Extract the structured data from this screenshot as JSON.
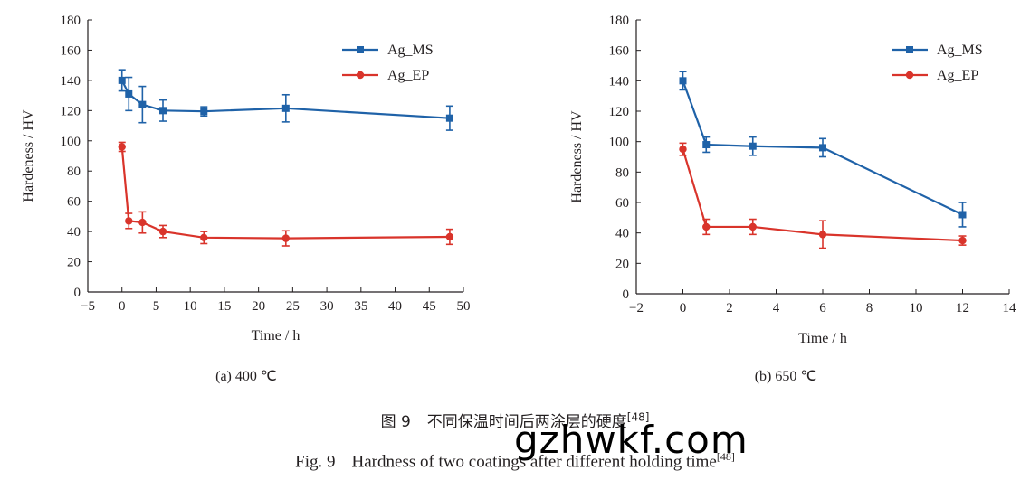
{
  "chart_data": [
    {
      "type": "line",
      "subtitle": "(a) 400 ℃",
      "xlabel": "Time / h",
      "ylabel": "Hardeness / HV",
      "xlim": [
        -5,
        50
      ],
      "ylim": [
        0,
        180
      ],
      "xticks": [
        -5,
        0,
        5,
        10,
        15,
        20,
        25,
        30,
        35,
        40,
        45,
        50
      ],
      "yticks": [
        0,
        20,
        40,
        60,
        80,
        100,
        120,
        140,
        160,
        180
      ],
      "legend": "top-right",
      "series": [
        {
          "name": "Ag_MS",
          "color": "#1f62a8",
          "marker": "square",
          "x": [
            0,
            1,
            3,
            6,
            12,
            24,
            48
          ],
          "y": [
            140,
            131,
            124,
            120,
            119.5,
            121.5,
            115
          ],
          "err": [
            7,
            11,
            12,
            7,
            3,
            9,
            8
          ]
        },
        {
          "name": "Ag_EP",
          "color": "#d9342b",
          "marker": "circle",
          "x": [
            0,
            1,
            3,
            6,
            12,
            24,
            48
          ],
          "y": [
            96,
            47,
            46,
            40,
            36,
            35.5,
            36.5
          ],
          "err": [
            3,
            5,
            7,
            4,
            4,
            5,
            5
          ]
        }
      ]
    },
    {
      "type": "line",
      "subtitle": "(b) 650 ℃",
      "xlabel": "Time / h",
      "ylabel": "Hardeness / HV",
      "xlim": [
        -2,
        14
      ],
      "ylim": [
        0,
        180
      ],
      "xticks": [
        -2,
        0,
        2,
        4,
        6,
        8,
        10,
        12,
        14
      ],
      "yticks": [
        0,
        20,
        40,
        60,
        80,
        100,
        120,
        140,
        160,
        180
      ],
      "legend": "top-right",
      "series": [
        {
          "name": "Ag_MS",
          "color": "#1f62a8",
          "marker": "square",
          "x": [
            0,
            1,
            3,
            6,
            12
          ],
          "y": [
            140,
            98,
            97,
            96,
            52
          ],
          "err": [
            6,
            5,
            6,
            6,
            8
          ]
        },
        {
          "name": "Ag_EP",
          "color": "#d9342b",
          "marker": "circle",
          "x": [
            0,
            1,
            3,
            6,
            12
          ],
          "y": [
            95,
            44,
            44,
            39,
            35
          ],
          "err": [
            4,
            5,
            5,
            9,
            3
          ]
        }
      ]
    }
  ],
  "caption": {
    "cn_label": "图 9",
    "cn_text": "不同保温时间后两涂层的硬度",
    "en_label": "Fig. 9",
    "en_text": "Hardness of two coatings after different holding time",
    "ref": "[48]"
  },
  "watermark": "gzhwkf.com"
}
